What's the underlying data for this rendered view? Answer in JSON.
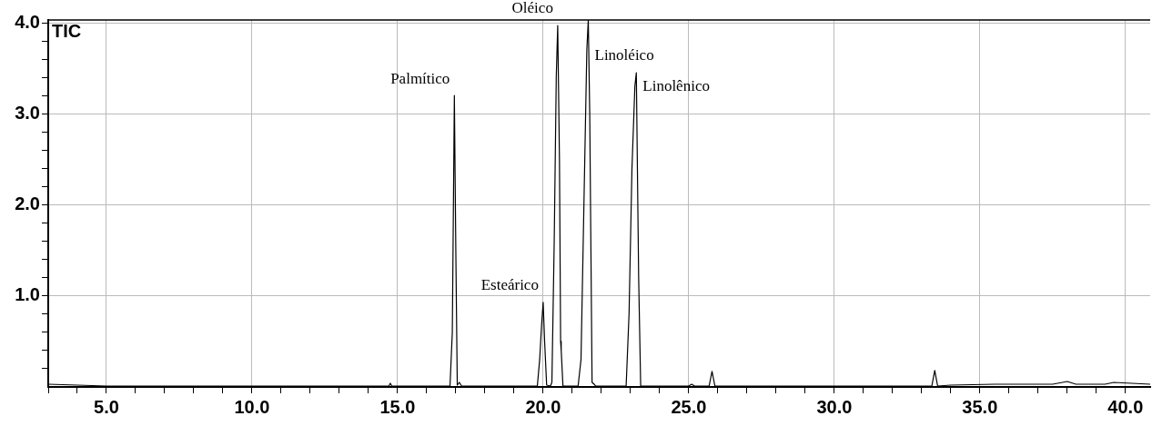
{
  "chart_data": {
    "type": "line",
    "title": "TIC",
    "x": [
      3.0,
      5.0,
      10.0,
      14.7,
      14.75,
      14.8,
      16.8,
      16.88,
      16.95,
      17.0,
      17.05,
      17.12,
      17.2,
      17.25,
      18.0,
      19.8,
      19.88,
      19.95,
      20.0,
      20.05,
      20.12,
      20.25,
      20.3,
      20.38,
      20.45,
      20.5,
      20.56,
      20.6,
      20.62,
      20.68,
      21.2,
      21.3,
      21.4,
      21.5,
      21.55,
      21.6,
      21.68,
      21.75,
      21.8,
      22.85,
      22.95,
      23.05,
      23.15,
      23.2,
      23.28,
      23.35,
      25.0,
      25.1,
      25.2,
      25.7,
      25.8,
      25.9,
      32.8,
      33.35,
      33.45,
      33.55,
      34.0,
      35.5,
      37.5,
      38.0,
      38.3,
      39.3,
      39.6,
      40.85
    ],
    "values": [
      0.03,
      0.01,
      0.01,
      0.01,
      0.04,
      0.01,
      0.01,
      0.6,
      3.2,
      1.5,
      0.02,
      0.05,
      0.01,
      0.01,
      0.01,
      0.01,
      0.3,
      0.7,
      0.93,
      0.5,
      0.02,
      0.01,
      0.05,
      1.6,
      3.4,
      3.97,
      2.5,
      0.5,
      0.4,
      0.01,
      0.01,
      0.3,
      2.0,
      3.7,
      4.03,
      3.0,
      0.05,
      0.03,
      0.01,
      0.01,
      0.8,
      2.4,
      3.3,
      3.45,
      1.2,
      0.01,
      0.01,
      0.03,
      0.01,
      0.01,
      0.17,
      0.01,
      0.01,
      0.01,
      0.18,
      0.01,
      0.02,
      0.03,
      0.03,
      0.06,
      0.03,
      0.03,
      0.05,
      0.03
    ],
    "color": "#000000",
    "xlim": [
      3.0,
      40.85
    ],
    "ylim": [
      0,
      4.03
    ],
    "xticks": [
      {
        "value": 3,
        "label": null
      },
      {
        "value": 4,
        "label": null
      },
      {
        "value": 5,
        "label": "5.0"
      },
      {
        "value": 6,
        "label": null
      },
      {
        "value": 7,
        "label": null
      },
      {
        "value": 8,
        "label": null
      },
      {
        "value": 9,
        "label": null
      },
      {
        "value": 10,
        "label": "10.0"
      },
      {
        "value": 11,
        "label": null
      },
      {
        "value": 12,
        "label": null
      },
      {
        "value": 13,
        "label": null
      },
      {
        "value": 14,
        "label": null
      },
      {
        "value": 15,
        "label": "15.0"
      },
      {
        "value": 16,
        "label": null
      },
      {
        "value": 17,
        "label": null
      },
      {
        "value": 18,
        "label": null
      },
      {
        "value": 19,
        "label": null
      },
      {
        "value": 20,
        "label": "20.0"
      },
      {
        "value": 21,
        "label": null
      },
      {
        "value": 22,
        "label": null
      },
      {
        "value": 23,
        "label": null
      },
      {
        "value": 24,
        "label": null
      },
      {
        "value": 25,
        "label": "25.0"
      },
      {
        "value": 26,
        "label": null
      },
      {
        "value": 27,
        "label": null
      },
      {
        "value": 28,
        "label": null
      },
      {
        "value": 29,
        "label": null
      },
      {
        "value": 30,
        "label": "30.0"
      },
      {
        "value": 31,
        "label": null
      },
      {
        "value": 32,
        "label": null
      },
      {
        "value": 33,
        "label": null
      },
      {
        "value": 34,
        "label": null
      },
      {
        "value": 35,
        "label": "35.0"
      },
      {
        "value": 36,
        "label": null
      },
      {
        "value": 37,
        "label": null
      },
      {
        "value": 38,
        "label": null
      },
      {
        "value": 39,
        "label": null
      },
      {
        "value": 40,
        "label": "40.0"
      }
    ],
    "yticks": [
      {
        "value": 0.2,
        "label": null
      },
      {
        "value": 0.4,
        "label": null
      },
      {
        "value": 0.6,
        "label": null
      },
      {
        "value": 0.8,
        "label": null
      },
      {
        "value": 1,
        "label": "1.0"
      },
      {
        "value": 1.2,
        "label": null
      },
      {
        "value": 1.4,
        "label": null
      },
      {
        "value": 1.6,
        "label": null
      },
      {
        "value": 1.8,
        "label": null
      },
      {
        "value": 2,
        "label": "2.0"
      },
      {
        "value": 2.2,
        "label": null
      },
      {
        "value": 2.4,
        "label": null
      },
      {
        "value": 2.6,
        "label": null
      },
      {
        "value": 2.8,
        "label": null
      },
      {
        "value": 3,
        "label": "3.0"
      },
      {
        "value": 3.2,
        "label": null
      },
      {
        "value": 3.4,
        "label": null
      },
      {
        "value": 3.6,
        "label": null
      },
      {
        "value": 3.8,
        "label": null
      },
      {
        "value": 4,
        "label": "4.0"
      }
    ],
    "grid": true,
    "marker": "none",
    "line_style": "solid",
    "legend": false,
    "annotations": [
      {
        "text": "Palmítico",
        "x": 16.95,
        "y": 3.2
      },
      {
        "text": "Esteárico",
        "x": 20.0,
        "y": 0.93
      },
      {
        "text": "Oléico",
        "x": 20.5,
        "y": 3.97
      },
      {
        "text": "Linoléico",
        "x": 21.55,
        "y": 4.03
      },
      {
        "text": "Linolênico",
        "x": 23.2,
        "y": 3.45
      }
    ]
  }
}
